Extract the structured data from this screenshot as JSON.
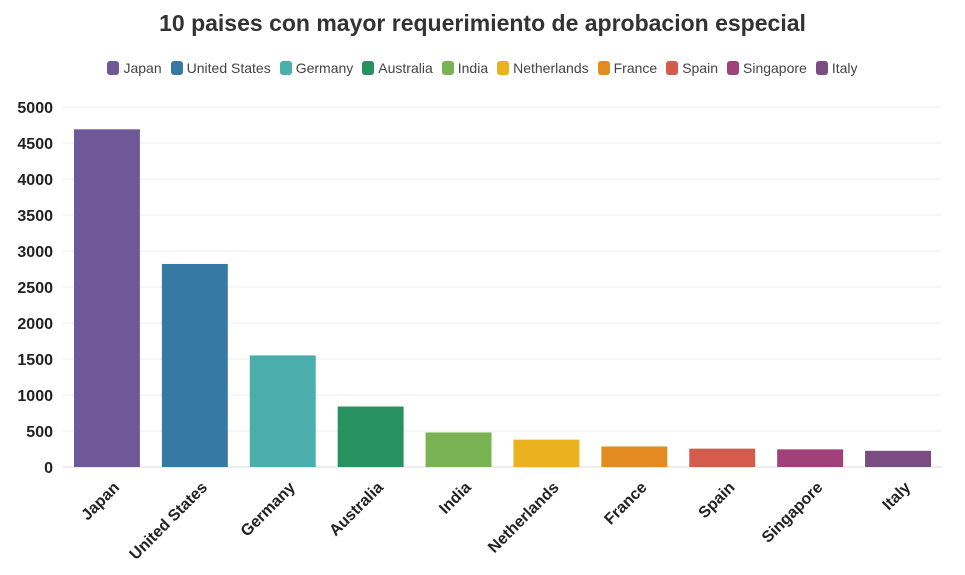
{
  "chart_data": {
    "type": "bar",
    "title": "10 paises con mayor requerimiento de aprobacion especial",
    "xlabel": "",
    "ylabel": "",
    "categories": [
      "Japan",
      "United States",
      "Germany",
      "Australia",
      "India",
      "Netherlands",
      "France",
      "Spain",
      "Singapore",
      "Italy"
    ],
    "values": [
      4690,
      2820,
      1550,
      840,
      480,
      380,
      285,
      255,
      245,
      225
    ],
    "colors": [
      "#6e5898",
      "#3679a2",
      "#4cadad",
      "#27915f",
      "#7ab353",
      "#ebb21f",
      "#e38a20",
      "#d35c4d",
      "#a0417a",
      "#7a4d82"
    ],
    "ylim": [
      0,
      5000
    ],
    "yticks": [
      0,
      500,
      1000,
      1500,
      2000,
      2500,
      3000,
      3500,
      4000,
      4500,
      5000
    ],
    "grid": true,
    "legend_position": "top-center"
  }
}
